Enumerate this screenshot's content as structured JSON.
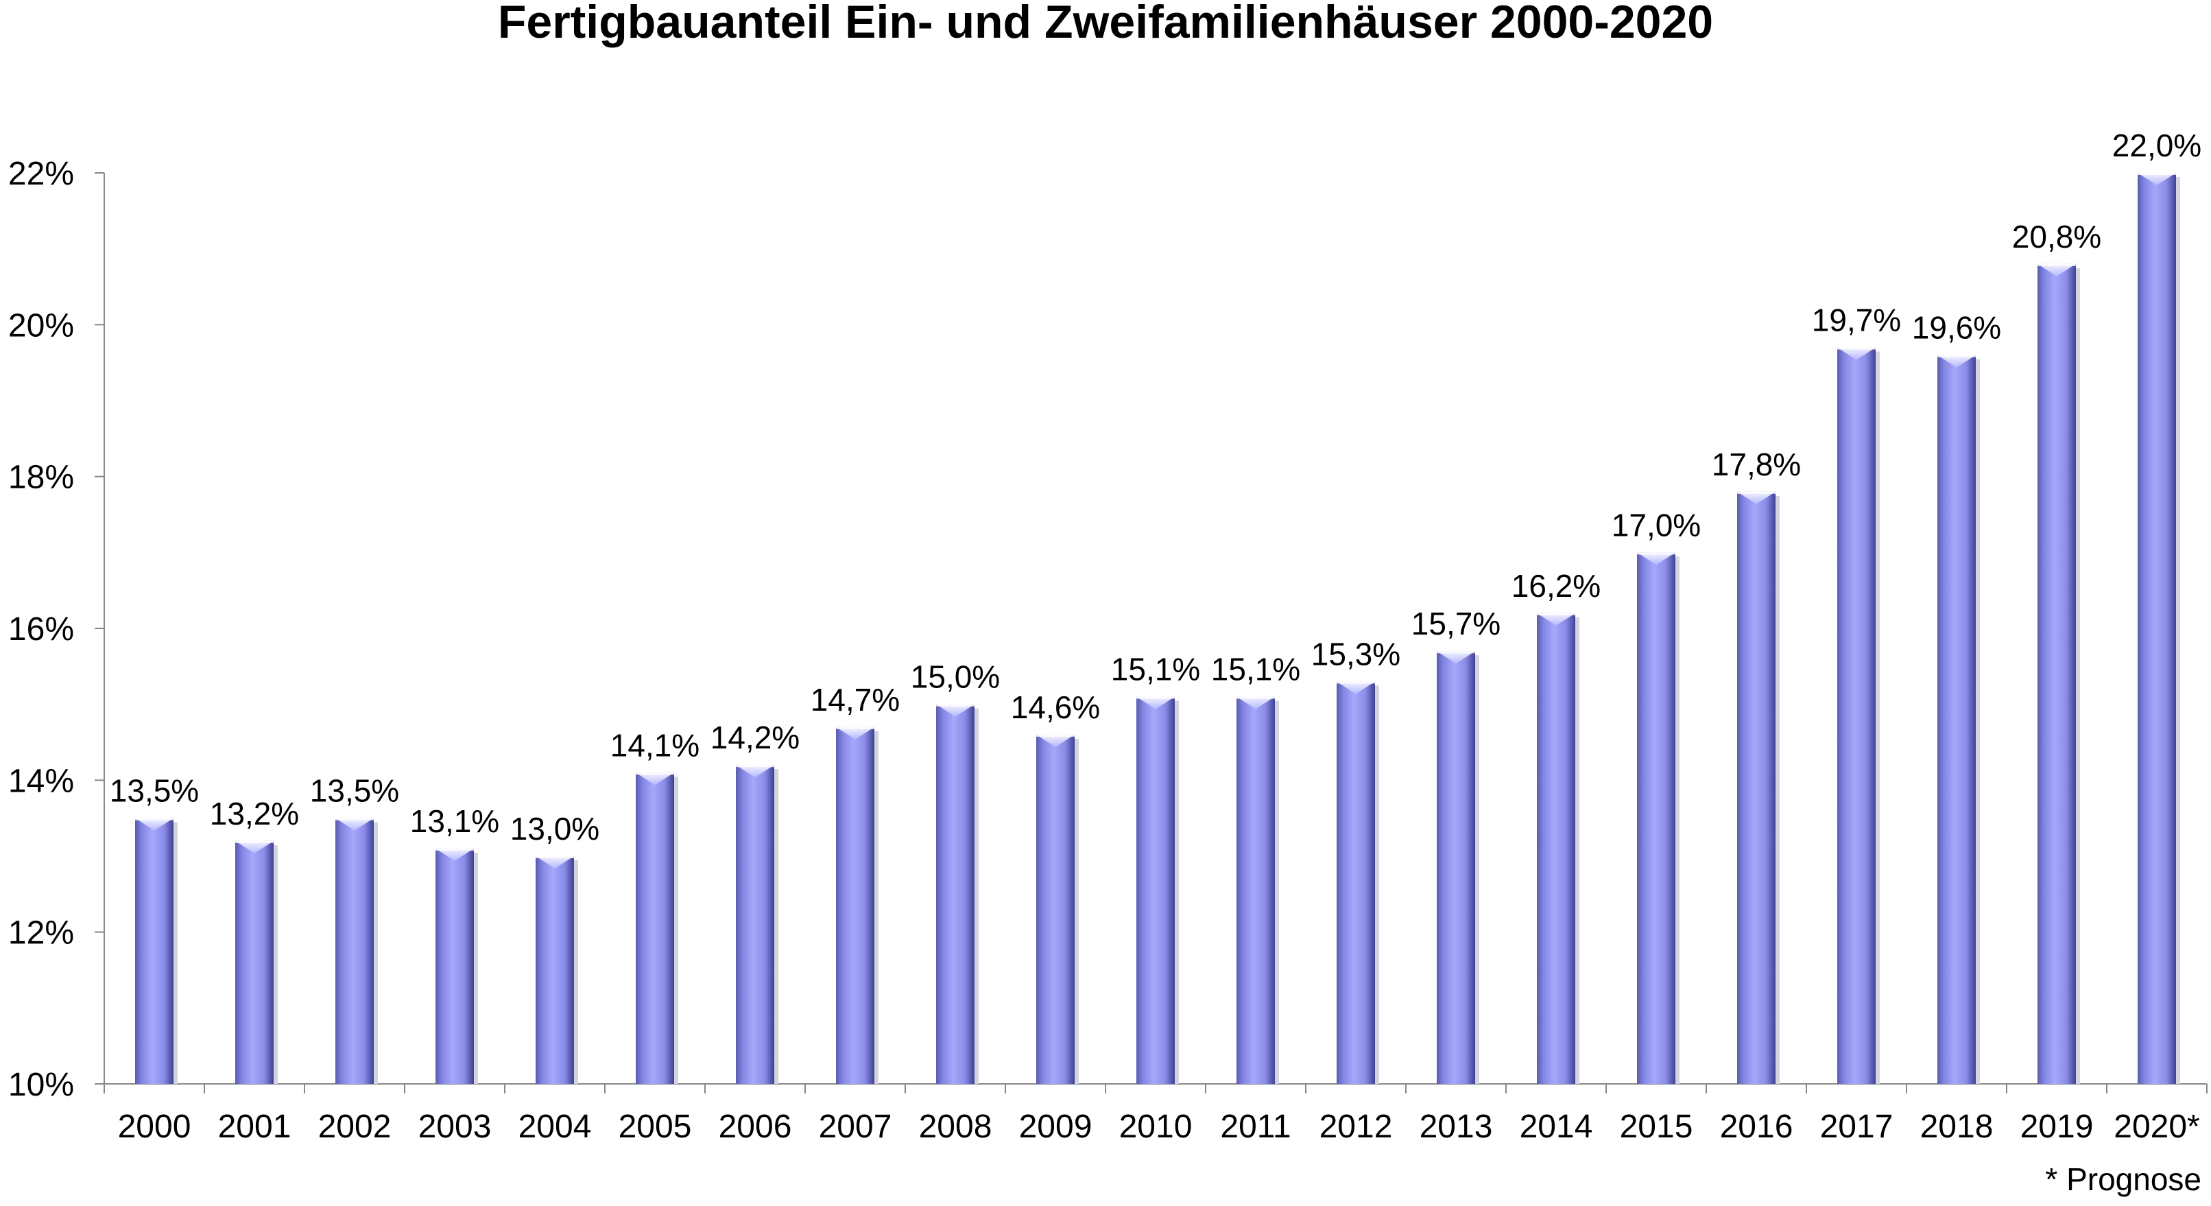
{
  "chart_data": {
    "type": "bar",
    "title": "Fertigbauanteil Ein- und Zweifamilienhäuser 2000-2020",
    "xlabel": "",
    "ylabel": "",
    "ylim": [
      10,
      22
    ],
    "yticks": [
      "10%",
      "12%",
      "14%",
      "16%",
      "18%",
      "20%",
      "22%"
    ],
    "yticks_values": [
      10,
      12,
      14,
      16,
      18,
      20,
      22
    ],
    "grid": false,
    "legend": "none",
    "categories": [
      "2000",
      "2001",
      "2002",
      "2003",
      "2004",
      "2005",
      "2006",
      "2007",
      "2008",
      "2009",
      "2010",
      "2011",
      "2012",
      "2013",
      "2014",
      "2015",
      "2016",
      "2017",
      "2018",
      "2019",
      "2020*"
    ],
    "values": [
      13.5,
      13.2,
      13.5,
      13.1,
      13.0,
      14.1,
      14.2,
      14.7,
      15.0,
      14.6,
      15.1,
      15.1,
      15.3,
      15.7,
      16.2,
      17.0,
      17.8,
      19.7,
      19.6,
      20.8,
      22.0
    ],
    "data_labels": [
      "13,5%",
      "13,2%",
      "13,5%",
      "13,1%",
      "13,0%",
      "14,1%",
      "14,2%",
      "14,7%",
      "15,0%",
      "14,6%",
      "15,1%",
      "15,1%",
      "15,3%",
      "15,7%",
      "16,2%",
      "17,0%",
      "17,8%",
      "19,7%",
      "19,6%",
      "20,8%",
      "22,0%"
    ],
    "footnote": "* Prognose",
    "bar_color": "#9a9cf0",
    "bar_dark": "#4a4ca0"
  }
}
